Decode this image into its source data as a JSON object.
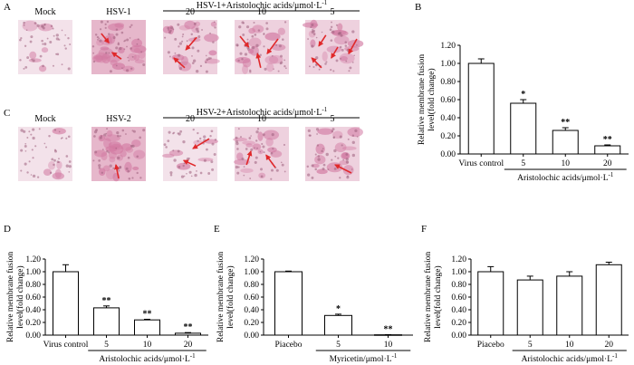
{
  "colors": {
    "stain_pink": "#d27aa2",
    "stain_light": "#f3e2ea",
    "nucleus": "#9c5f7c",
    "arrow_red": "#e0282a"
  },
  "micrographs": {
    "letter_a": "A",
    "letter_c": "C",
    "rows": [
      {
        "group_label": "HSV-1+Aristolochic acids/μmol·L",
        "group_sup": "-1",
        "tiles": [
          {
            "label": "Mock",
            "stain": "light",
            "arrows": []
          },
          {
            "label": "HSV-1",
            "stain": "heavy",
            "arrows": [
              [
                0.18,
                0.25,
                0.32,
                0.42
              ],
              [
                0.55,
                0.72,
                0.38,
                0.6
              ]
            ]
          },
          {
            "label": "20",
            "stain": "medium",
            "arrows": [
              [
                0.62,
                0.32,
                0.42,
                0.55
              ],
              [
                0.4,
                0.88,
                0.2,
                0.7
              ]
            ]
          },
          {
            "label": "10",
            "stain": "medium",
            "arrows": [
              [
                0.1,
                0.3,
                0.26,
                0.5
              ],
              [
                0.8,
                0.35,
                0.6,
                0.62
              ],
              [
                0.48,
                0.88,
                0.42,
                0.62
              ]
            ]
          },
          {
            "label": "5",
            "stain": "medium",
            "arrows": [
              [
                0.38,
                0.28,
                0.25,
                0.48
              ],
              [
                0.6,
                0.5,
                0.48,
                0.7
              ],
              [
                0.95,
                0.35,
                0.8,
                0.62
              ],
              [
                0.3,
                0.88,
                0.12,
                0.7
              ]
            ]
          }
        ]
      },
      {
        "group_label": "HSV-2+Aristolochic acids/μmol·L",
        "group_sup": "-1",
        "tiles": [
          {
            "label": "Mock",
            "stain": "light",
            "arrows": []
          },
          {
            "label": "HSV-2",
            "stain": "heavy",
            "arrows": [
              [
                0.5,
                0.95,
                0.45,
                0.7
              ]
            ]
          },
          {
            "label": "20",
            "stain": "light",
            "arrows": [
              [
                0.85,
                0.22,
                0.55,
                0.4
              ],
              [
                0.6,
                0.72,
                0.38,
                0.62
              ]
            ]
          },
          {
            "label": "10",
            "stain": "medium",
            "arrows": [
              [
                0.22,
                0.7,
                0.3,
                0.45
              ],
              [
                0.75,
                0.75,
                0.58,
                0.52
              ]
            ]
          },
          {
            "label": "5",
            "stain": "medium",
            "arrows": [
              [
                0.85,
                0.85,
                0.55,
                0.7
              ]
            ]
          }
        ]
      }
    ]
  },
  "chart_data": [
    {
      "id": "B",
      "type": "bar",
      "letter": "B",
      "categories": [
        "Virus control",
        "5",
        "10",
        "20"
      ],
      "values": [
        1.0,
        0.56,
        0.26,
        0.09
      ],
      "errors": [
        0.05,
        0.04,
        0.03,
        0.01
      ],
      "significance": [
        "",
        "*",
        "**",
        "**"
      ],
      "ylabel_lines": [
        "Relative membrane fusion",
        "level(fold change)"
      ],
      "xgroup_label": "Aristolochic acids/μmol·L",
      "xgroup_sup": "-1",
      "group_start": 1,
      "ylim": [
        0,
        1.2
      ],
      "yticks": [
        "0.00",
        "0.20",
        "0.40",
        "0.60",
        "0.80",
        "1.00",
        "1.20"
      ]
    },
    {
      "id": "D",
      "type": "bar",
      "letter": "D",
      "categories": [
        "Virus control",
        "5",
        "10",
        "20"
      ],
      "values": [
        1.0,
        0.43,
        0.24,
        0.03
      ],
      "errors": [
        0.11,
        0.03,
        0.01,
        0.01
      ],
      "significance": [
        "",
        "**",
        "**",
        "**"
      ],
      "ylabel_lines": [
        "Relative membrane fusion",
        "level(fold change)"
      ],
      "xgroup_label": "Aristolochic acids/μmol·L",
      "xgroup_sup": "-1",
      "group_start": 1,
      "ylim": [
        0,
        1.2
      ],
      "yticks": [
        "0.00",
        "0.20",
        "0.40",
        "0.60",
        "0.80",
        "1.00",
        "1.20"
      ]
    },
    {
      "id": "E",
      "type": "bar",
      "letter": "E",
      "categories": [
        "Piacebo",
        "5",
        "10"
      ],
      "values": [
        1.0,
        0.31,
        0.005
      ],
      "errors": [
        0.01,
        0.02,
        0.002
      ],
      "significance": [
        "",
        "*",
        "**"
      ],
      "ylabel_lines": [
        "Relative membrane fusion",
        "level(fold change)"
      ],
      "xgroup_label": "Myricetin/μmol·L",
      "xgroup_sup": "-1",
      "group_start": 1,
      "ylim": [
        0,
        1.2
      ],
      "yticks": [
        "0.00",
        "0.20",
        "0.40",
        "0.60",
        "0.80",
        "1.00",
        "1.20"
      ]
    },
    {
      "id": "F",
      "type": "bar",
      "letter": "F",
      "categories": [
        "Piacebo",
        "5",
        "10",
        "20"
      ],
      "values": [
        1.0,
        0.87,
        0.93,
        1.11
      ],
      "errors": [
        0.08,
        0.06,
        0.07,
        0.04
      ],
      "significance": [
        "",
        "",
        "",
        ""
      ],
      "ylabel_lines": [
        "Relative membrane fusion",
        "level(fold change)"
      ],
      "xgroup_label": "Aristolochic acids/μmol·L",
      "xgroup_sup": "-1",
      "group_start": 1,
      "ylim": [
        0,
        1.2
      ],
      "yticks": [
        "0.00",
        "0.20",
        "0.40",
        "0.60",
        "0.80",
        "1.00",
        "1.20"
      ]
    }
  ]
}
